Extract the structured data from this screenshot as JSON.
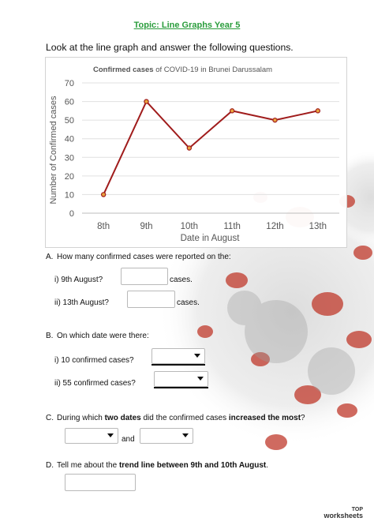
{
  "header": {
    "topic": "Topic: Line Graphs Year 5",
    "instruction": "Look at the line graph and answer the following questions."
  },
  "chart_data": {
    "type": "line",
    "title_bold": "Confirmed cases",
    "title_rest": " of COVID-19 in Brunei Darussalam",
    "xlabel": "Date in August",
    "ylabel": "Number of Confirmed cases",
    "categories": [
      "8th",
      "9th",
      "10th",
      "11th",
      "12th",
      "13th"
    ],
    "series": [
      {
        "values": [
          10,
          60,
          35,
          55,
          50,
          55
        ]
      }
    ],
    "yticks": [
      0,
      10,
      20,
      30,
      40,
      50,
      60,
      70
    ],
    "ylim": [
      0,
      70
    ],
    "grid": true,
    "line_color": "#a01c1c"
  },
  "questions": {
    "a": {
      "label": "A.",
      "text": "How many confirmed cases were reported on the:",
      "i": "i) 9th August?",
      "i_suffix": "cases.",
      "ii": "ii) 13th August?",
      "ii_suffix": "cases."
    },
    "b": {
      "label": "B.",
      "text": "On which date were there:",
      "i": "i) 10 confirmed cases?",
      "ii": "ii) 55 confirmed cases?"
    },
    "c": {
      "label": "C.",
      "pre": "During which ",
      "bold1": "two dates",
      "mid": " did the confirmed cases ",
      "bold2": "increased the most",
      "post": "?",
      "and": "and"
    },
    "d": {
      "label": "D.",
      "pre": "Tell me about the ",
      "bold": "trend line between 9th and 10th August",
      "post": "."
    }
  },
  "brand": {
    "top": "TOP",
    "bottom": "worksheets"
  }
}
